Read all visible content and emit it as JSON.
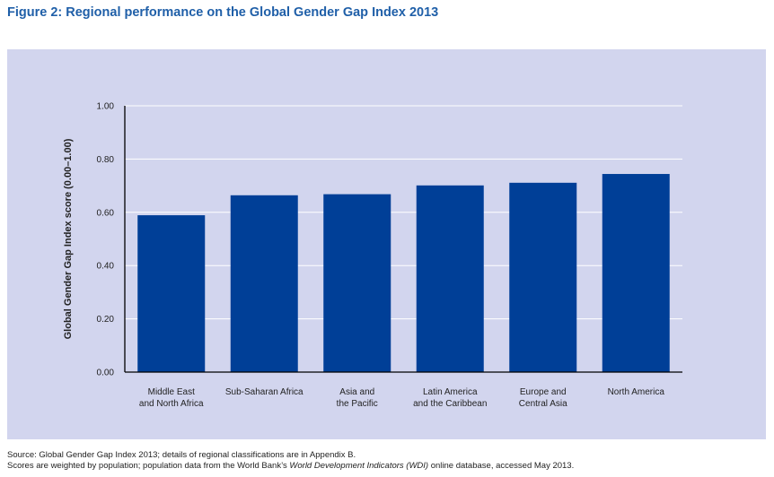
{
  "title": "Figure 2: Regional performance on the Global Gender Gap Index 2013",
  "chart_data": {
    "type": "bar",
    "categories": [
      [
        "Middle East",
        "and North Africa"
      ],
      [
        "Sub-Saharan Africa"
      ],
      [
        "Asia and",
        "the Pacific"
      ],
      [
        "Latin America",
        "and the Caribbean"
      ],
      [
        "Europe and",
        "Central Asia"
      ],
      [
        "North America"
      ]
    ],
    "values": [
      0.589,
      0.664,
      0.668,
      0.701,
      0.711,
      0.744
    ],
    "ylabel": "Global Gender Gap Index score (0.00–1.00)",
    "ylim": [
      0,
      1
    ],
    "yticks": [
      "0.00",
      "0.20",
      "0.40",
      "0.60",
      "0.80",
      "1.00"
    ],
    "grid": true,
    "bar_color": "#003f97",
    "grid_color": "#ffffff",
    "background_color": "#d2d5ee"
  },
  "footer": {
    "source": "Source: Global Gender Gap Index 2013; details of regional classifications are in Appendix B.",
    "note_prefix": "Scores are weighted by population; population data from the World Bank’s ",
    "note_italic": "World Development Indicators (WDI)",
    "note_suffix": " online database, accessed May 2013."
  }
}
